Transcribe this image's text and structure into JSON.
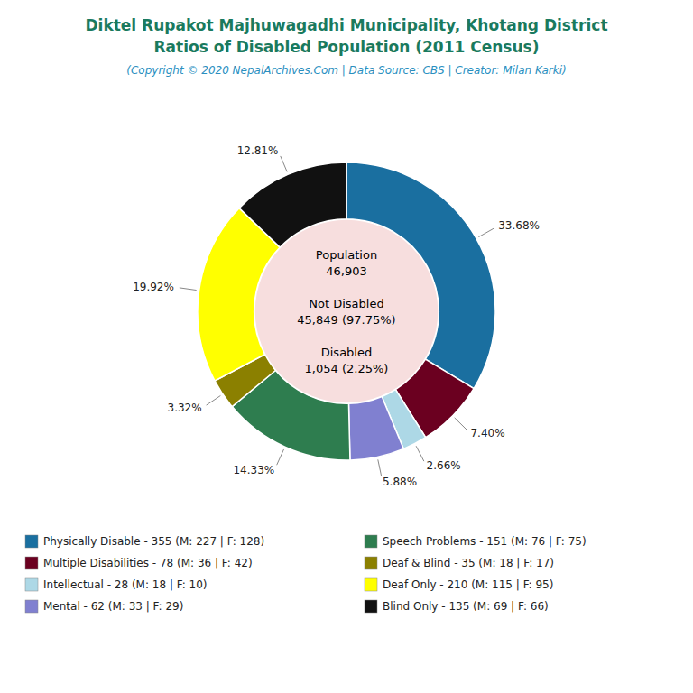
{
  "chart_data": {
    "type": "donut",
    "title": [
      "Diktel Rupakot Majhuwagadhi Municipality, Khotang District",
      "Ratios of Disabled Population (2011 Census)"
    ],
    "subtitle": "(Copyright © 2020 NepalArchives.Com | Data Source: CBS | Creator: Milan Karki)",
    "categories": [
      "Physically Disable - 355 (M: 227 | F: 128)",
      "Multiple Disabilities - 78 (M: 36 | F: 42)",
      "Intellectual - 28 (M: 18 | F: 10)",
      "Mental - 62 (M: 33 | F: 29)",
      "Speech Problems - 151 (M: 76 | F: 75)",
      "Deaf & Blind - 35 (M: 18 | F: 17)",
      "Deaf Only - 210 (M: 115 | F: 95)",
      "Blind Only - 135 (M: 69 | F: 66)"
    ],
    "values": [
      33.68,
      7.4,
      2.66,
      5.88,
      14.33,
      3.32,
      19.92,
      12.81
    ],
    "value_labels": [
      "33.68%",
      "7.40%",
      "2.66%",
      "5.88%",
      "14.33%",
      "3.32%",
      "19.92%",
      "12.81%"
    ],
    "colors": [
      "#1a6fa0",
      "#6b0020",
      "#add8e6",
      "#8080d0",
      "#2e7d4f",
      "#8b8000",
      "#ffff00",
      "#111111"
    ],
    "data_labels": true,
    "legend": "bottom",
    "annotations": [
      "Population\n46,903",
      "Not Disabled\n45,849 (97.75%)",
      "Disabled\n1,054 (2.25%)"
    ]
  }
}
